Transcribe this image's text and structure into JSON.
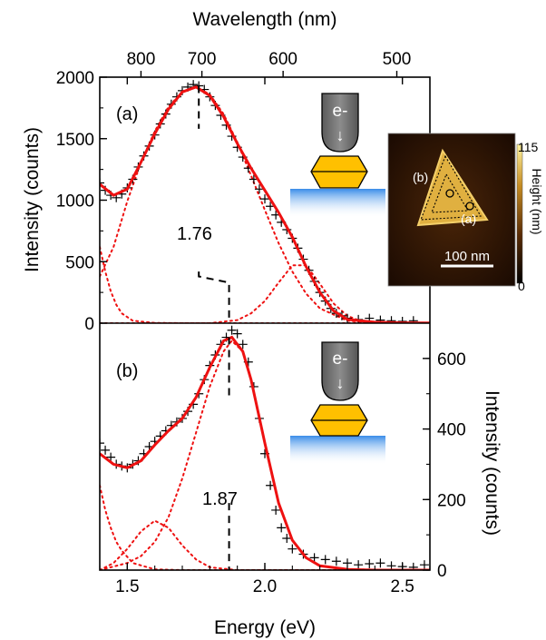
{
  "chart_data": {
    "type": "line",
    "xlabel": "Energy (eV)",
    "x_range": [
      1.4,
      2.6
    ],
    "x_ticks": [
      "1.5",
      "2.0",
      "2.5"
    ],
    "top_axis": {
      "label": "Wavelength (nm)",
      "ticks": [
        "800",
        "700",
        "600",
        "500"
      ],
      "tick_values_nm": [
        800,
        700,
        600,
        500
      ]
    },
    "panels": [
      {
        "label": "(a)",
        "ylabel": "Intensity (counts)",
        "ylabel_side": "left",
        "ylim": [
          0,
          2000
        ],
        "y_ticks": [
          "0",
          "500",
          "1000",
          "1500",
          "2000"
        ],
        "peak_label": "1.76",
        "peak_energy": 1.76,
        "data_points": [
          [
            1.4,
            1140
          ],
          [
            1.42,
            1080
          ],
          [
            1.44,
            1040
          ],
          [
            1.46,
            1020
          ],
          [
            1.48,
            1050
          ],
          [
            1.5,
            1100
          ],
          [
            1.52,
            1170
          ],
          [
            1.54,
            1270
          ],
          [
            1.56,
            1360
          ],
          [
            1.58,
            1440
          ],
          [
            1.6,
            1530
          ],
          [
            1.62,
            1620
          ],
          [
            1.64,
            1700
          ],
          [
            1.66,
            1780
          ],
          [
            1.68,
            1840
          ],
          [
            1.7,
            1890
          ],
          [
            1.72,
            1920
          ],
          [
            1.74,
            1940
          ],
          [
            1.76,
            1930
          ],
          [
            1.78,
            1900
          ],
          [
            1.8,
            1840
          ],
          [
            1.82,
            1770
          ],
          [
            1.84,
            1690
          ],
          [
            1.86,
            1610
          ],
          [
            1.88,
            1520
          ],
          [
            1.9,
            1430
          ],
          [
            1.92,
            1350
          ],
          [
            1.94,
            1260
          ],
          [
            1.96,
            1170
          ],
          [
            1.98,
            1090
          ],
          [
            2.0,
            1010
          ],
          [
            2.02,
            950
          ],
          [
            2.04,
            880
          ],
          [
            2.06,
            820
          ],
          [
            2.08,
            760
          ],
          [
            2.1,
            690
          ],
          [
            2.12,
            610
          ],
          [
            2.14,
            520
          ],
          [
            2.16,
            430
          ],
          [
            2.18,
            340
          ],
          [
            2.2,
            250
          ],
          [
            2.22,
            180
          ],
          [
            2.24,
            120
          ],
          [
            2.26,
            80
          ],
          [
            2.28,
            60
          ],
          [
            2.3,
            40
          ],
          [
            2.34,
            30
          ],
          [
            2.38,
            40
          ],
          [
            2.42,
            25
          ],
          [
            2.46,
            20
          ],
          [
            2.5,
            15
          ],
          [
            2.54,
            20
          ]
        ],
        "fit": [
          [
            1.4,
            1130
          ],
          [
            1.45,
            1040
          ],
          [
            1.5,
            1090
          ],
          [
            1.55,
            1310
          ],
          [
            1.6,
            1540
          ],
          [
            1.65,
            1740
          ],
          [
            1.7,
            1880
          ],
          [
            1.75,
            1920
          ],
          [
            1.8,
            1850
          ],
          [
            1.85,
            1680
          ],
          [
            1.9,
            1460
          ],
          [
            1.95,
            1260
          ],
          [
            2.0,
            1080
          ],
          [
            2.05,
            900
          ],
          [
            2.1,
            700
          ],
          [
            2.15,
            460
          ],
          [
            2.2,
            250
          ],
          [
            2.25,
            100
          ],
          [
            2.3,
            30
          ],
          [
            2.4,
            8
          ],
          [
            2.5,
            3
          ],
          [
            2.6,
            2
          ]
        ],
        "components": [
          [
            [
              1.4,
              620
            ],
            [
              1.42,
              420
            ],
            [
              1.44,
              260
            ],
            [
              1.46,
              150
            ],
            [
              1.48,
              80
            ],
            [
              1.52,
              20
            ],
            [
              1.6,
              2
            ],
            [
              1.7,
              0
            ],
            [
              2.6,
              0
            ]
          ],
          [
            [
              1.4,
              380
            ],
            [
              1.45,
              620
            ],
            [
              1.5,
              990
            ],
            [
              1.55,
              1310
            ],
            [
              1.6,
              1560
            ],
            [
              1.65,
              1760
            ],
            [
              1.7,
              1880
            ],
            [
              1.75,
              1920
            ],
            [
              1.8,
              1860
            ],
            [
              1.85,
              1700
            ],
            [
              1.9,
              1470
            ],
            [
              1.95,
              1200
            ],
            [
              2.0,
              920
            ],
            [
              2.05,
              650
            ],
            [
              2.1,
              420
            ],
            [
              2.15,
              240
            ],
            [
              2.2,
              120
            ],
            [
              2.3,
              20
            ],
            [
              2.4,
              2
            ],
            [
              2.6,
              0
            ]
          ],
          [
            [
              1.4,
              0
            ],
            [
              1.8,
              0
            ],
            [
              1.9,
              25
            ],
            [
              1.95,
              80
            ],
            [
              2.0,
              180
            ],
            [
              2.05,
              330
            ],
            [
              2.1,
              470
            ],
            [
              2.15,
              470
            ],
            [
              2.2,
              320
            ],
            [
              2.25,
              160
            ],
            [
              2.3,
              60
            ],
            [
              2.35,
              15
            ],
            [
              2.45,
              0
            ],
            [
              2.6,
              0
            ]
          ]
        ]
      },
      {
        "label": "(b)",
        "ylabel": "Intensity (counts)",
        "ylabel_side": "right",
        "ylim": [
          0,
          700
        ],
        "y_ticks": [
          "0",
          "200",
          "400",
          "600"
        ],
        "peak_label": "1.87",
        "peak_energy": 1.87,
        "data_points": [
          [
            1.4,
            360
          ],
          [
            1.42,
            340
          ],
          [
            1.44,
            320
          ],
          [
            1.46,
            300
          ],
          [
            1.48,
            295
          ],
          [
            1.5,
            290
          ],
          [
            1.52,
            300
          ],
          [
            1.54,
            310
          ],
          [
            1.56,
            330
          ],
          [
            1.58,
            350
          ],
          [
            1.6,
            365
          ],
          [
            1.62,
            380
          ],
          [
            1.64,
            395
          ],
          [
            1.66,
            410
          ],
          [
            1.68,
            420
          ],
          [
            1.7,
            430
          ],
          [
            1.72,
            450
          ],
          [
            1.74,
            470
          ],
          [
            1.76,
            500
          ],
          [
            1.78,
            540
          ],
          [
            1.8,
            580
          ],
          [
            1.82,
            610
          ],
          [
            1.84,
            640
          ],
          [
            1.86,
            660
          ],
          [
            1.88,
            680
          ],
          [
            1.9,
            670
          ],
          [
            1.92,
            640
          ],
          [
            1.94,
            590
          ],
          [
            1.96,
            520
          ],
          [
            1.98,
            430
          ],
          [
            2.0,
            330
          ],
          [
            2.02,
            240
          ],
          [
            2.04,
            170
          ],
          [
            2.06,
            120
          ],
          [
            2.08,
            90
          ],
          [
            2.1,
            60
          ],
          [
            2.14,
            45
          ],
          [
            2.18,
            35
          ],
          [
            2.22,
            30
          ],
          [
            2.26,
            25
          ],
          [
            2.3,
            20
          ],
          [
            2.34,
            15
          ],
          [
            2.38,
            18
          ],
          [
            2.42,
            20
          ],
          [
            2.46,
            12
          ],
          [
            2.5,
            10
          ],
          [
            2.54,
            8
          ],
          [
            2.58,
            15
          ]
        ],
        "fit": [
          [
            1.4,
            330
          ],
          [
            1.45,
            300
          ],
          [
            1.5,
            290
          ],
          [
            1.55,
            310
          ],
          [
            1.6,
            355
          ],
          [
            1.65,
            395
          ],
          [
            1.7,
            430
          ],
          [
            1.75,
            490
          ],
          [
            1.8,
            575
          ],
          [
            1.85,
            650
          ],
          [
            1.88,
            660
          ],
          [
            1.92,
            620
          ],
          [
            1.95,
            540
          ],
          [
            2.0,
            360
          ],
          [
            2.05,
            190
          ],
          [
            2.1,
            85
          ],
          [
            2.15,
            35
          ],
          [
            2.2,
            12
          ],
          [
            2.3,
            2
          ],
          [
            2.4,
            0
          ],
          [
            2.6,
            0
          ]
        ],
        "components": [
          [
            [
              1.4,
              240
            ],
            [
              1.42,
              170
            ],
            [
              1.44,
              120
            ],
            [
              1.46,
              80
            ],
            [
              1.48,
              55
            ],
            [
              1.52,
              20
            ],
            [
              1.6,
              2
            ],
            [
              1.7,
              0
            ],
            [
              2.6,
              0
            ]
          ],
          [
            [
              1.4,
              0
            ],
            [
              1.45,
              20
            ],
            [
              1.5,
              60
            ],
            [
              1.55,
              110
            ],
            [
              1.6,
              140
            ],
            [
              1.65,
              120
            ],
            [
              1.7,
              70
            ],
            [
              1.75,
              30
            ],
            [
              1.8,
              8
            ],
            [
              1.9,
              0
            ],
            [
              2.6,
              0
            ]
          ],
          [
            [
              1.4,
              0
            ],
            [
              1.5,
              20
            ],
            [
              1.55,
              40
            ],
            [
              1.6,
              80
            ],
            [
              1.65,
              150
            ],
            [
              1.7,
              260
            ],
            [
              1.75,
              390
            ],
            [
              1.8,
              520
            ],
            [
              1.85,
              620
            ],
            [
              1.88,
              650
            ],
            [
              1.92,
              620
            ],
            [
              1.95,
              540
            ],
            [
              2.0,
              360
            ],
            [
              2.05,
              190
            ],
            [
              2.1,
              85
            ],
            [
              2.15,
              35
            ],
            [
              2.2,
              12
            ],
            [
              2.3,
              2
            ],
            [
              2.6,
              0
            ]
          ]
        ]
      }
    ]
  },
  "insets": {
    "tip_label": "e-",
    "tip_arrow": "↓",
    "afm": {
      "scale_bar_label": "100 nm",
      "colorbar_label": "Height (nm)",
      "colorbar_max": "115",
      "colorbar_min": "0",
      "marker_a": "(a)",
      "marker_b": "(b)"
    }
  },
  "colors": {
    "fit": "#ee1111",
    "components": "#ee1111",
    "data": "#000000",
    "particle": "#ffc000",
    "tip": "#7a7a7a",
    "substrate": "#3a8de8",
    "afm_background": "#2a1404",
    "afm_particle": "#e0b040"
  }
}
